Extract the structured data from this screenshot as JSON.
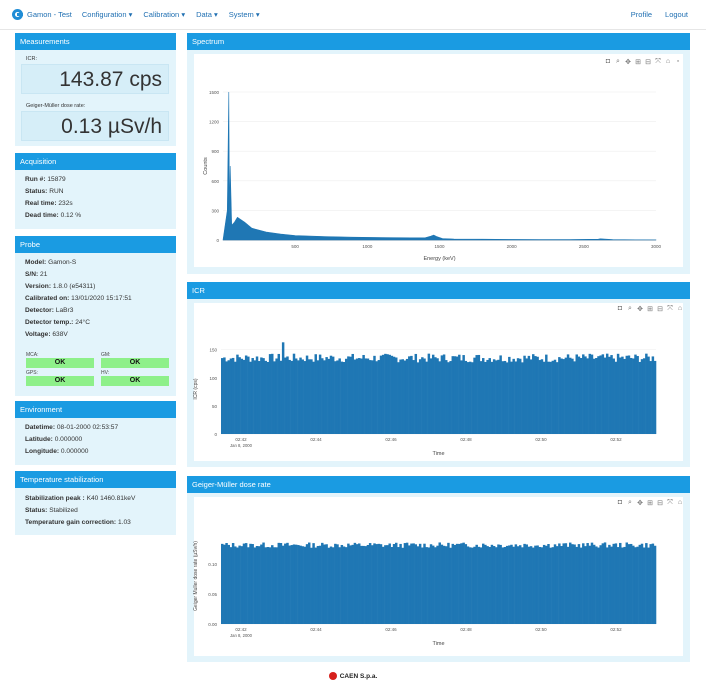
{
  "nav": {
    "brand": "Gamon - Test",
    "menu": [
      "Configuration",
      "Calibration",
      "Data",
      "System"
    ],
    "right": [
      "Profile",
      "Logout"
    ]
  },
  "measurements": {
    "title": "Measurements",
    "icr_label": "ICR:",
    "icr_value": "143.87 cps",
    "dose_label": "Geiger-Müller dose rate:",
    "dose_value": "0.13 µSv/h"
  },
  "acquisition": {
    "title": "Acquisition",
    "rows": [
      {
        "k": "Run #:",
        "v": "15879"
      },
      {
        "k": "Status:",
        "v": "RUN"
      },
      {
        "k": "Real time:",
        "v": "232s"
      },
      {
        "k": "Dead time:",
        "v": "0.12 %"
      }
    ]
  },
  "probe": {
    "title": "Probe",
    "rows": [
      {
        "k": "Model:",
        "v": "Gamon-S"
      },
      {
        "k": "S/N:",
        "v": "21"
      },
      {
        "k": "Version:",
        "v": "1.8.0 (e54311)"
      },
      {
        "k": "Calibrated on:",
        "v": "13/01/2020 15:17:51"
      },
      {
        "k": "Detector:",
        "v": "LaBr3"
      },
      {
        "k": "Detector temp.:",
        "v": "24°C"
      },
      {
        "k": "Voltage:",
        "v": "638V"
      }
    ],
    "status": [
      {
        "label": "MCA:",
        "value": "OK"
      },
      {
        "label": "GM:",
        "value": "OK"
      },
      {
        "label": "GPS:",
        "value": "OK"
      },
      {
        "label": "HV:",
        "value": "OK"
      }
    ]
  },
  "environment": {
    "title": "Environment",
    "rows": [
      {
        "k": "Datetime:",
        "v": "08-01-2000 02:53:57"
      },
      {
        "k": "Latitude:",
        "v": "0.000000"
      },
      {
        "k": "Longitude:",
        "v": "0.000000"
      }
    ]
  },
  "stabilization": {
    "title": "Temperature stabilization",
    "rows": [
      {
        "k": "Stabilization peak :",
        "v": "K40 1460.81keV"
      },
      {
        "k": "Status:",
        "v": "Stabilized"
      },
      {
        "k": "Temperature gain correction:",
        "v": "1.03"
      }
    ]
  },
  "colors": {
    "header": "#1a9be2",
    "panel": "#e3f4fb",
    "series": "#1f77b4",
    "ok": "#8ef08a"
  },
  "toolbar_icons": [
    "camera-icon",
    "zoom-icon",
    "pan-icon",
    "zoom-in-icon",
    "zoom-out-icon",
    "autoscale-icon",
    "reset-icon"
  ],
  "chart_data": [
    {
      "type": "area",
      "panel_title": "Spectrum",
      "xlabel": "Energy (keV)",
      "ylabel": "Counts",
      "xlim": [
        0,
        3000
      ],
      "ylim": [
        0,
        1500
      ],
      "xticks": [
        500,
        1000,
        1500,
        2000,
        2500,
        3000
      ],
      "xtick_labels": [
        "500",
        "1000",
        "1500",
        "2000",
        "2500",
        "3000"
      ],
      "yticks": [
        0,
        300,
        600,
        900,
        1200,
        1500
      ],
      "ytick_labels": [
        "0",
        "300",
        "600",
        "900",
        "1200",
        "1500"
      ],
      "x": [
        0,
        30,
        40,
        45,
        50,
        60,
        80,
        100,
        150,
        200,
        300,
        400,
        500,
        700,
        900,
        1100,
        1300,
        1400,
        1440,
        1460,
        1480,
        1520,
        1600,
        1800,
        2000,
        2200,
        2400,
        2600,
        2614,
        2700,
        2900,
        3000
      ],
      "y": [
        0,
        300,
        1500,
        200,
        750,
        150,
        180,
        230,
        180,
        120,
        80,
        60,
        45,
        35,
        28,
        25,
        22,
        22,
        40,
        50,
        35,
        15,
        10,
        8,
        6,
        5,
        5,
        8,
        12,
        4,
        2,
        1
      ]
    },
    {
      "type": "bar",
      "panel_title": "ICR",
      "xlabel": "Time",
      "ylabel": "ICR (cps)",
      "ylim": [
        0,
        160
      ],
      "yticks": [
        0,
        50,
        100,
        150
      ],
      "ytick_labels": [
        "0",
        "50",
        "100",
        "150"
      ],
      "xtick_labels": [
        "02:42",
        "02:44",
        "02:46",
        "02:48",
        "02:50",
        "02:52"
      ],
      "x_sublabel": "Jan 8, 2000",
      "value_range": [
        115,
        150
      ],
      "typical_value": 133,
      "peak_value": 163
    },
    {
      "type": "bar",
      "panel_title": "Geiger-Müller dose rate",
      "xlabel": "Time",
      "ylabel": "Geiger Muller dose rate (µSv/h)",
      "ylim": [
        0,
        0.16
      ],
      "yticks": [
        0,
        0.05,
        0.1
      ],
      "ytick_labels": [
        "0.00",
        "0.05",
        "0.10"
      ],
      "xtick_labels": [
        "02:42",
        "02:44",
        "02:46",
        "02:48",
        "02:50",
        "02:52"
      ],
      "x_sublabel": "Jan 8, 2000",
      "value_range": [
        0.12,
        0.14
      ],
      "typical_value": 0.13
    }
  ],
  "footer": "CAEN S.p.a."
}
